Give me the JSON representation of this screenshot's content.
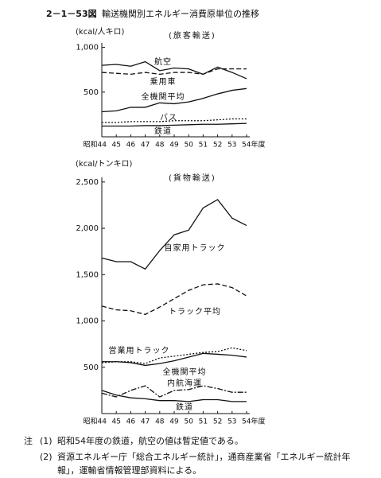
{
  "header": {
    "figure_number": "2－1－53図",
    "title": "輸送機関別エネルギー消費原単位の推移"
  },
  "chart_data": [
    {
      "type": "line",
      "subtitle": "(旅客輸送)",
      "y_label": "(kcal/人キロ)",
      "categories": [
        "昭和44",
        "45",
        "46",
        "47",
        "48",
        "49",
        "50",
        "51",
        "52",
        "53",
        "54年度"
      ],
      "ylim": [
        0,
        1050
      ],
      "yticks": [
        {
          "value": 1000,
          "label": "1,000"
        },
        500
      ],
      "series": [
        {
          "name": "航空",
          "color": "#111",
          "dash": "solid",
          "values": [
            800,
            810,
            790,
            840,
            740,
            770,
            760,
            700,
            780,
            720,
            650
          ]
        },
        {
          "name": "乗用車",
          "color": "#111",
          "dash": "dashed",
          "values": [
            720,
            710,
            700,
            720,
            700,
            720,
            720,
            700,
            760,
            760,
            760
          ]
        },
        {
          "name": "全機関平均",
          "color": "#111",
          "dash": "solid",
          "values": [
            280,
            290,
            330,
            330,
            380,
            370,
            390,
            430,
            480,
            520,
            540
          ]
        },
        {
          "name": "バス",
          "color": "#111",
          "dash": "dotted",
          "values": [
            160,
            160,
            170,
            170,
            170,
            180,
            180,
            180,
            190,
            200,
            200
          ]
        },
        {
          "name": "鉄道",
          "color": "#111",
          "dash": "solid",
          "values": [
            120,
            120,
            120,
            125,
            125,
            130,
            135,
            140,
            140,
            145,
            150
          ]
        }
      ]
    },
    {
      "type": "line",
      "subtitle": "(貨物輸送)",
      "y_label": "(kcal/トンキロ)",
      "categories": [
        "昭和44",
        "45",
        "46",
        "47",
        "48",
        "49",
        "50",
        "51",
        "52",
        "53",
        "54年度"
      ],
      "ylim": [
        0,
        2550
      ],
      "yticks": [
        {
          "value": 2500,
          "label": "2,500"
        },
        {
          "value": 2000,
          "label": "2,000"
        },
        {
          "value": 1500,
          "label": "1,500"
        },
        {
          "value": 1000,
          "label": "1,000"
        },
        500
      ],
      "series": [
        {
          "name": "自家用トラック",
          "color": "#111",
          "dash": "solid",
          "values": [
            1680,
            1640,
            1640,
            1560,
            1760,
            1930,
            1980,
            2220,
            2310,
            2110,
            2030
          ]
        },
        {
          "name": "トラック平均",
          "color": "#111",
          "dash": "dashed",
          "values": [
            1160,
            1120,
            1110,
            1070,
            1150,
            1240,
            1330,
            1390,
            1400,
            1360,
            1270
          ]
        },
        {
          "name": "営業用トラック",
          "color": "#111",
          "dash": "dotted",
          "values": [
            550,
            560,
            560,
            540,
            600,
            620,
            640,
            660,
            670,
            710,
            680
          ]
        },
        {
          "name": "全機関平均",
          "color": "#111",
          "dash": "solid",
          "values": [
            560,
            560,
            550,
            520,
            540,
            570,
            610,
            650,
            640,
            630,
            610
          ]
        },
        {
          "name": "内航海運",
          "color": "#111",
          "dash": "dashdot",
          "values": [
            220,
            180,
            250,
            300,
            180,
            250,
            260,
            300,
            270,
            230,
            230
          ]
        },
        {
          "name": "鉄道",
          "color": "#111",
          "dash": "solid",
          "values": [
            250,
            200,
            170,
            160,
            140,
            140,
            130,
            150,
            150,
            130,
            130
          ]
        }
      ]
    }
  ],
  "notes": {
    "label": "注",
    "items": [
      {
        "marker": "(1)",
        "text": "昭和54年度の鉄道，航空の値は暫定値である。"
      },
      {
        "marker": "(2)",
        "text": "資源エネルギー庁「総合エネルギー統計」，通商産業省「エネルギー統計年報」，運輸省情報管理部資料による。"
      }
    ]
  }
}
